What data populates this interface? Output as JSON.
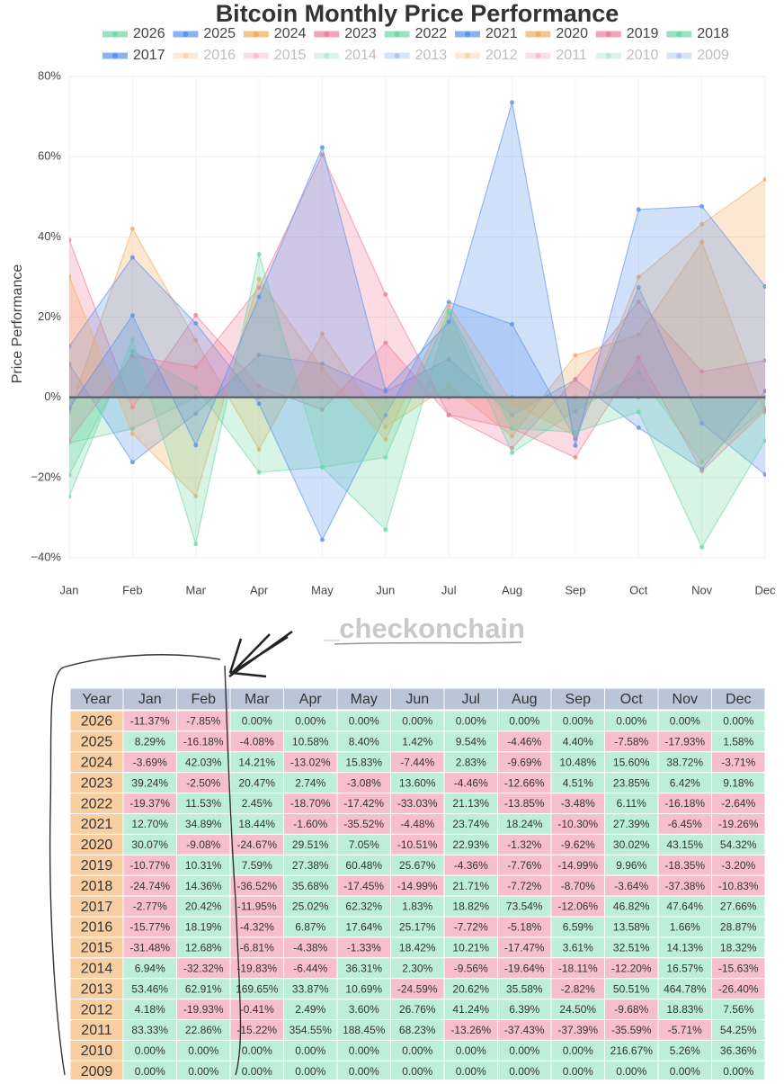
{
  "chart_data": {
    "type": "area",
    "title": "Bitcoin Monthly Price Performance",
    "y_label": "Price Performance",
    "watermark": "_checkonchain",
    "categories": [
      "Jan",
      "Feb",
      "Mar",
      "Apr",
      "May",
      "Jun",
      "Jul",
      "Aug",
      "Sep",
      "Oct",
      "Nov",
      "Dec"
    ],
    "ylim": [
      -40,
      80
    ],
    "yticks": [
      {
        "value": -40,
        "label": "−40%"
      },
      {
        "value": -20,
        "label": "−20%"
      },
      {
        "value": 0,
        "label": "0%"
      },
      {
        "value": 20,
        "label": "20%"
      },
      {
        "value": 40,
        "label": "40%"
      },
      {
        "value": 60,
        "label": "60%"
      },
      {
        "value": 80,
        "label": "80%"
      }
    ],
    "grid": true,
    "series": [
      {
        "name": "2026",
        "color": "#6fd9a6",
        "values": [
          -11.37,
          -7.85,
          0,
          0,
          0,
          0,
          0,
          0,
          0,
          0,
          0,
          0
        ],
        "value_labels": [
          "-11.37%",
          "-7.85%",
          "0.00%",
          "0.00%",
          "0.00%",
          "0.00%",
          "0.00%",
          "0.00%",
          "0.00%",
          "0.00%",
          "0.00%",
          "0.00%"
        ]
      },
      {
        "name": "2025",
        "color": "#5b93ee",
        "values": [
          8.29,
          -16.18,
          -4.08,
          10.58,
          8.4,
          1.42,
          9.54,
          -4.46,
          4.4,
          -7.58,
          -17.93,
          1.58
        ],
        "value_labels": [
          "8.29%",
          "-16.18%",
          "-4.08%",
          "10.58%",
          "8.40%",
          "1.42%",
          "9.54%",
          "-4.46%",
          "4.40%",
          "-7.58%",
          "-17.93%",
          "1.58%"
        ]
      },
      {
        "name": "2024",
        "color": "#f3ad5f",
        "values": [
          -3.69,
          42.03,
          14.21,
          -13.02,
          15.83,
          -7.44,
          2.83,
          -9.69,
          10.48,
          15.6,
          38.72,
          -3.71
        ],
        "value_labels": [
          "-3.69%",
          "42.03%",
          "14.21%",
          "-13.02%",
          "15.83%",
          "-7.44%",
          "2.83%",
          "-9.69%",
          "10.48%",
          "15.60%",
          "38.72%",
          "-3.71%"
        ]
      },
      {
        "name": "2023",
        "color": "#ef7f9d",
        "values": [
          39.24,
          -2.5,
          20.47,
          2.74,
          -3.08,
          13.6,
          -4.46,
          -12.66,
          4.51,
          23.85,
          6.42,
          9.18
        ],
        "value_labels": [
          "39.24%",
          "-2.50%",
          "20.47%",
          "2.74%",
          "-3.08%",
          "13.60%",
          "-4.46%",
          "-12.66%",
          "4.51%",
          "23.85%",
          "6.42%",
          "9.18%"
        ]
      },
      {
        "name": "2022",
        "color": "#6fd9a6",
        "values": [
          -19.37,
          11.53,
          2.45,
          -18.7,
          -17.42,
          -33.03,
          21.13,
          -13.85,
          -3.48,
          6.11,
          -16.18,
          -2.64
        ],
        "value_labels": [
          "-19.37%",
          "11.53%",
          "2.45%",
          "-18.70%",
          "-17.42%",
          "-33.03%",
          "21.13%",
          "-13.85%",
          "-3.48%",
          "6.11%",
          "-16.18%",
          "-2.64%"
        ]
      },
      {
        "name": "2021",
        "color": "#5b93ee",
        "values": [
          12.7,
          34.89,
          18.44,
          -1.6,
          -35.52,
          -4.48,
          23.74,
          18.24,
          -10.3,
          27.39,
          -6.45,
          -19.26
        ],
        "value_labels": [
          "12.70%",
          "34.89%",
          "18.44%",
          "-1.60%",
          "-35.52%",
          "-4.48%",
          "23.74%",
          "18.24%",
          "-10.30%",
          "27.39%",
          "-6.45%",
          "-19.26%"
        ]
      },
      {
        "name": "2020",
        "color": "#f3ad5f",
        "values": [
          30.07,
          -9.08,
          -24.67,
          29.51,
          7.05,
          -10.51,
          22.93,
          -1.32,
          -9.62,
          30.02,
          43.15,
          54.32
        ],
        "value_labels": [
          "30.07%",
          "-9.08%",
          "-24.67%",
          "29.51%",
          "7.05%",
          "-10.51%",
          "22.93%",
          "-1.32%",
          "-9.62%",
          "30.02%",
          "43.15%",
          "54.32%"
        ]
      },
      {
        "name": "2019",
        "color": "#ef7f9d",
        "values": [
          -10.77,
          10.31,
          7.59,
          27.38,
          60.48,
          25.67,
          -4.36,
          -7.76,
          -14.99,
          9.96,
          -18.35,
          -3.2
        ],
        "value_labels": [
          "-10.77%",
          "10.31%",
          "7.59%",
          "27.38%",
          "60.48%",
          "25.67%",
          "-4.36%",
          "-7.76%",
          "-14.99%",
          "9.96%",
          "-18.35%",
          "-3.20%"
        ]
      },
      {
        "name": "2018",
        "color": "#6fd9a6",
        "values": [
          -24.74,
          14.36,
          -36.52,
          35.68,
          -17.45,
          -14.99,
          21.71,
          -7.72,
          -8.7,
          -3.64,
          -37.38,
          -10.83
        ],
        "value_labels": [
          "-24.74%",
          "14.36%",
          "-36.52%",
          "35.68%",
          "-17.45%",
          "-14.99%",
          "21.71%",
          "-7.72%",
          "-8.70%",
          "-3.64%",
          "-37.38%",
          "-10.83%"
        ]
      },
      {
        "name": "2017",
        "color": "#5b93ee",
        "values": [
          -2.77,
          20.42,
          -11.95,
          25.02,
          62.32,
          1.83,
          18.82,
          73.54,
          -12.06,
          46.82,
          47.64,
          27.66
        ],
        "value_labels": [
          "-2.77%",
          "20.42%",
          "-11.95%",
          "25.02%",
          "62.32%",
          "1.83%",
          "18.82%",
          "73.54%",
          "-12.06%",
          "46.82%",
          "47.64%",
          "27.66%"
        ]
      },
      {
        "name": "2016",
        "color": "#f3ad5f",
        "hidden": true,
        "values": [
          -15.77,
          18.19,
          -4.32,
          6.87,
          17.64,
          25.17,
          -7.72,
          -5.18,
          6.59,
          13.58,
          1.66,
          28.87
        ],
        "value_labels": [
          "-15.77%",
          "18.19%",
          "-4.32%",
          "6.87%",
          "17.64%",
          "25.17%",
          "-7.72%",
          "-5.18%",
          "6.59%",
          "13.58%",
          "1.66%",
          "28.87%"
        ]
      },
      {
        "name": "2015",
        "color": "#ef7f9d",
        "hidden": true,
        "values": [
          -31.48,
          12.68,
          -6.81,
          -4.38,
          -1.33,
          18.42,
          10.21,
          -17.47,
          3.61,
          32.51,
          14.13,
          18.32
        ],
        "value_labels": [
          "-31.48%",
          "12.68%",
          "-6.81%",
          "-4.38%",
          "-1.33%",
          "18.42%",
          "10.21%",
          "-17.47%",
          "3.61%",
          "32.51%",
          "14.13%",
          "18.32%"
        ]
      },
      {
        "name": "2014",
        "color": "#6fd9a6",
        "hidden": true,
        "values": [
          6.94,
          -32.32,
          -19.83,
          -6.44,
          36.31,
          2.3,
          -9.56,
          -19.64,
          -18.11,
          -12.2,
          16.57,
          -15.63
        ],
        "value_labels": [
          "6.94%",
          "-32.32%",
          "-19.83%",
          "-6.44%",
          "36.31%",
          "2.30%",
          "-9.56%",
          "-19.64%",
          "-18.11%",
          "-12.20%",
          "16.57%",
          "-15.63%"
        ]
      },
      {
        "name": "2013",
        "color": "#5b93ee",
        "hidden": true,
        "values": [
          53.46,
          62.91,
          169.65,
          33.87,
          10.69,
          -24.59,
          20.62,
          35.58,
          -2.82,
          50.51,
          464.78,
          -26.4
        ],
        "value_labels": [
          "53.46%",
          "62.91%",
          "169.65%",
          "33.87%",
          "10.69%",
          "-24.59%",
          "20.62%",
          "35.58%",
          "-2.82%",
          "50.51%",
          "464.78%",
          "-26.40%"
        ]
      },
      {
        "name": "2012",
        "color": "#f3ad5f",
        "hidden": true,
        "values": [
          4.18,
          -19.93,
          -0.41,
          2.49,
          3.6,
          26.76,
          41.24,
          6.39,
          24.5,
          -9.68,
          18.83,
          7.56
        ],
        "value_labels": [
          "4.18%",
          "-19.93%",
          "-0.41%",
          "2.49%",
          "3.60%",
          "26.76%",
          "41.24%",
          "6.39%",
          "24.50%",
          "-9.68%",
          "18.83%",
          "7.56%"
        ]
      },
      {
        "name": "2011",
        "color": "#ef7f9d",
        "hidden": true,
        "values": [
          83.33,
          22.86,
          -15.22,
          354.55,
          188.45,
          68.23,
          -13.26,
          -37.43,
          -37.39,
          -35.59,
          -5.71,
          54.25
        ],
        "value_labels": [
          "83.33%",
          "22.86%",
          "-15.22%",
          "354.55%",
          "188.45%",
          "68.23%",
          "-13.26%",
          "-37.43%",
          "-37.39%",
          "-35.59%",
          "-5.71%",
          "54.25%"
        ]
      },
      {
        "name": "2010",
        "color": "#6fd9a6",
        "hidden": true,
        "values": [
          0,
          0,
          0,
          0,
          0,
          0,
          0,
          0,
          0,
          216.67,
          5.26,
          36.36
        ],
        "value_labels": [
          "0.00%",
          "0.00%",
          "0.00%",
          "0.00%",
          "0.00%",
          "0.00%",
          "0.00%",
          "0.00%",
          "0.00%",
          "216.67%",
          "5.26%",
          "36.36%"
        ]
      },
      {
        "name": "2009",
        "color": "#5b93ee",
        "hidden": true,
        "values": [
          0,
          0,
          0,
          0,
          0,
          0,
          0,
          0,
          0,
          0,
          0,
          0
        ],
        "value_labels": [
          "0.00%",
          "0.00%",
          "0.00%",
          "0.00%",
          "0.00%",
          "0.00%",
          "0.00%",
          "0.00%",
          "0.00%",
          "0.00%",
          "0.00%",
          "0.00%"
        ]
      }
    ]
  },
  "table": {
    "header": "Year"
  }
}
